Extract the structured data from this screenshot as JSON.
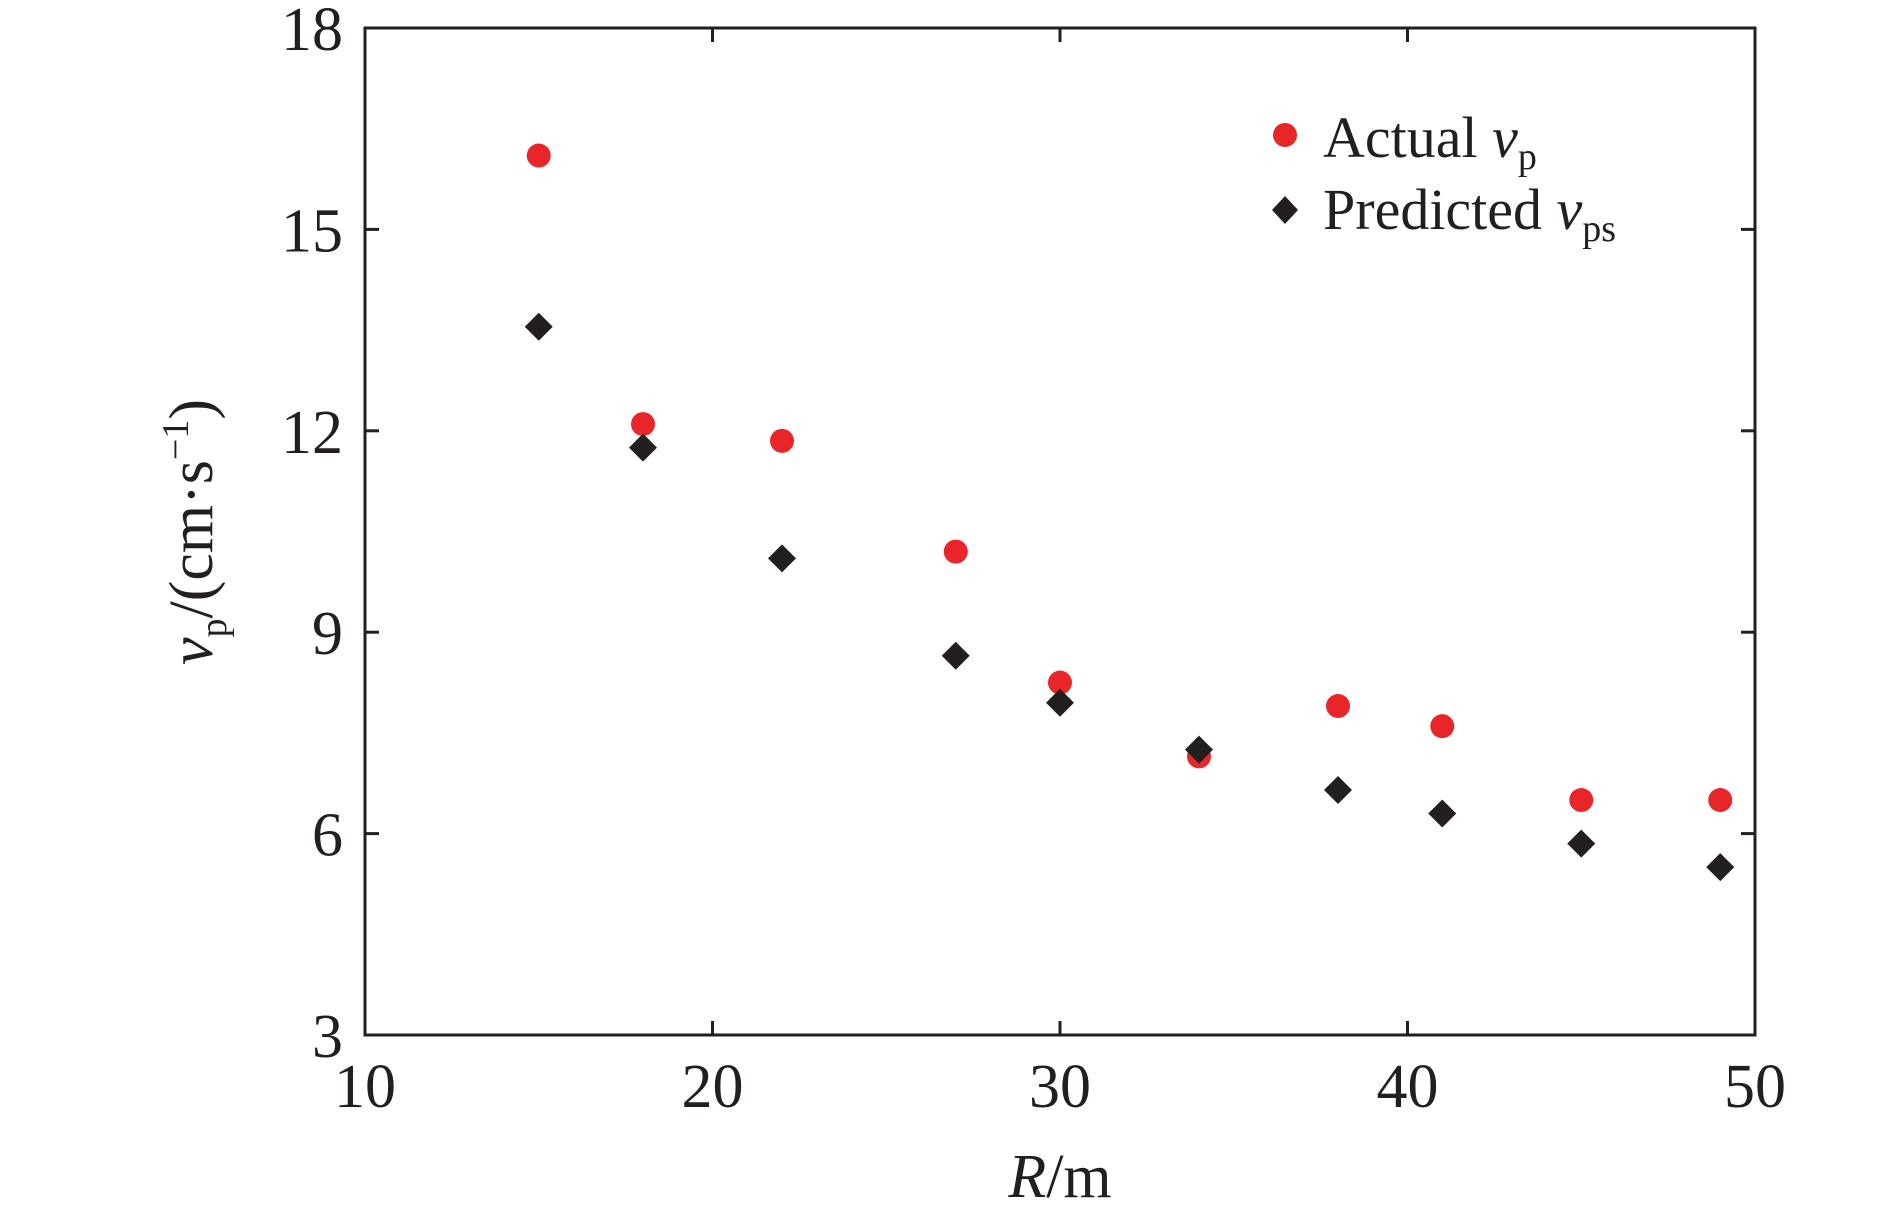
{
  "chart_data": {
    "type": "scatter",
    "xlabel": {
      "var": "R",
      "unit": "/m"
    },
    "ylabel": {
      "var": "v",
      "sub": "p",
      "unit": "/(cm·s",
      "sup": "−1",
      "close": ")"
    },
    "xlim": [
      10,
      50
    ],
    "ylim": [
      3,
      18
    ],
    "xticks": [
      10,
      20,
      30,
      40,
      50
    ],
    "yticks": [
      3,
      6,
      9,
      12,
      15,
      18
    ],
    "grid": false,
    "legend_position": "top-right",
    "series": [
      {
        "name": "Actual v_p",
        "legend": {
          "text": "Actual ",
          "var": "v",
          "sub": "p"
        },
        "marker": "circle",
        "color": "#e8262a",
        "x": [
          15,
          18,
          22,
          27,
          30,
          34,
          38,
          41,
          45,
          49
        ],
        "y": [
          16.1,
          12.1,
          11.85,
          10.2,
          8.25,
          7.15,
          7.9,
          7.6,
          6.5,
          6.5
        ]
      },
      {
        "name": "Predicted v_ps",
        "legend": {
          "text": "Predicted ",
          "var": "v",
          "sub": "ps"
        },
        "marker": "diamond",
        "color": "#231f20",
        "x": [
          15,
          18,
          22,
          27,
          30,
          34,
          38,
          41,
          45,
          49
        ],
        "y": [
          13.55,
          11.75,
          10.1,
          8.65,
          7.95,
          7.25,
          6.65,
          6.3,
          5.85,
          5.5
        ]
      }
    ]
  }
}
